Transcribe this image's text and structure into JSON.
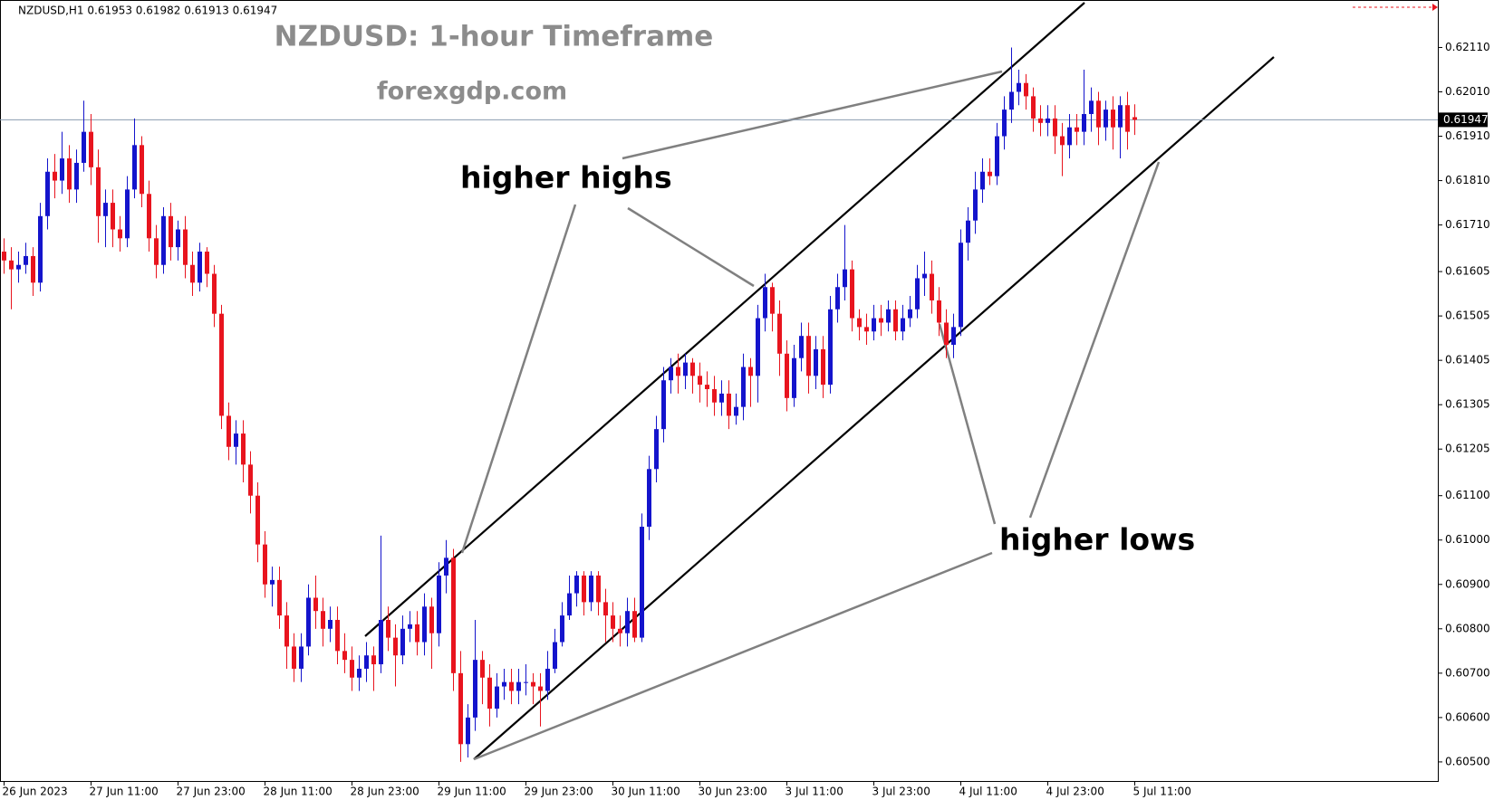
{
  "chart_data": {
    "type": "candlestick",
    "header": "NZDUSD,H1  0.61953 0.61982 0.61913 0.61947",
    "title": "NZDUSD: 1-hour Timeframe",
    "subtitle": "forexgdp.com",
    "annotations": [
      "higher highs",
      "higher lows"
    ],
    "up_color": "#1414cc",
    "down_color": "#e8141e",
    "categories": [
      "26 Jun 2023",
      null,
      null,
      null,
      null,
      null,
      null,
      null,
      null,
      null,
      null,
      null,
      "27 Jun 11:00",
      null,
      null,
      null,
      null,
      null,
      null,
      null,
      null,
      null,
      null,
      null,
      "27 Jun 23:00",
      null,
      null,
      null,
      null,
      null,
      null,
      null,
      null,
      null,
      null,
      null,
      "28 Jun 11:00",
      null,
      null,
      null,
      null,
      null,
      null,
      null,
      null,
      null,
      null,
      null,
      "28 Jun 23:00",
      null,
      null,
      null,
      null,
      null,
      null,
      null,
      null,
      null,
      null,
      null,
      "29 Jun 11:00",
      null,
      null,
      null,
      null,
      null,
      null,
      null,
      null,
      null,
      null,
      null,
      "29 Jun 23:00",
      null,
      null,
      null,
      null,
      null,
      null,
      null,
      null,
      null,
      null,
      null,
      "30 Jun 11:00",
      null,
      null,
      null,
      null,
      null,
      null,
      null,
      null,
      null,
      null,
      null,
      "30 Jun 23:00",
      null,
      null,
      null,
      null,
      null,
      null,
      null,
      null,
      null,
      null,
      null,
      "3 Jul 11:00",
      null,
      null,
      null,
      null,
      null,
      null,
      null,
      null,
      null,
      null,
      null,
      "3 Jul 23:00",
      null,
      null,
      null,
      null,
      null,
      null,
      null,
      null,
      null,
      null,
      null,
      "4 Jul 11:00",
      null,
      null,
      null,
      null,
      null,
      null,
      null,
      null,
      null,
      null,
      null,
      "4 Jul 23:00",
      null,
      null,
      null,
      null,
      null,
      null,
      null,
      null,
      null,
      null,
      null,
      "5 Jul 11:00"
    ],
    "open": [
      0.6165,
      0.6163,
      0.6161,
      0.6162,
      0.6164,
      0.6158,
      0.6173,
      0.6183,
      0.6181,
      0.6186,
      0.6179,
      0.6185,
      0.6192,
      0.6184,
      0.6173,
      0.6176,
      0.617,
      0.6168,
      0.6179,
      0.6189,
      0.6178,
      0.6168,
      0.6162,
      0.6173,
      0.6166,
      0.617,
      0.6162,
      0.6158,
      0.6165,
      0.616,
      0.6151,
      0.6128,
      0.6121,
      0.6124,
      0.6117,
      0.611,
      0.6099,
      0.609,
      0.6091,
      0.6083,
      0.6076,
      0.6071,
      0.6076,
      0.6087,
      0.6084,
      0.608,
      0.6082,
      0.6075,
      0.6073,
      0.6069,
      0.6071,
      0.6074,
      0.6072,
      0.6082,
      0.6078,
      0.6074,
      0.608,
      0.6081,
      0.6077,
      0.6085,
      0.6079,
      0.6092,
      0.6096,
      0.607,
      0.6054,
      0.606,
      0.6073,
      0.6069,
      0.6062,
      0.6067,
      0.6068,
      0.6066,
      0.6068,
      0.6068,
      0.6067,
      0.6066,
      0.6071,
      0.6077,
      0.6083,
      0.6088,
      0.6092,
      0.6086,
      0.6092,
      0.6086,
      0.6083,
      0.608,
      0.6079,
      0.6084,
      0.6078,
      0.6103,
      0.6116,
      0.6125,
      0.6136,
      0.6139,
      0.6137,
      0.614,
      0.6137,
      0.6135,
      0.6134,
      0.6131,
      0.6133,
      0.6128,
      0.613,
      0.6139,
      0.6137,
      0.615,
      0.6157,
      0.6151,
      0.6142,
      0.6132,
      0.6141,
      0.6146,
      0.6137,
      0.6143,
      0.6135,
      0.6152,
      0.6157,
      0.6161,
      0.615,
      0.6148,
      0.6147,
      0.615,
      0.6149,
      0.6152,
      0.6147,
      0.615,
      0.6152,
      0.6159,
      0.616,
      0.6154,
      0.6149,
      0.6144,
      0.6148,
      0.6167,
      0.6172,
      0.6179,
      0.6183,
      0.6182,
      0.6191,
      0.6197,
      0.6201,
      0.6203,
      0.62,
      0.6195,
      0.6194,
      0.6195,
      0.6191,
      0.6189,
      0.6193,
      0.6192,
      0.6196,
      0.6199,
      0.6193,
      0.6197,
      0.6193,
      0.6198,
      0.61953
    ],
    "high": [
      0.6168,
      0.6166,
      0.6165,
      0.6167,
      0.6166,
      0.6176,
      0.6186,
      0.6187,
      0.6192,
      0.6189,
      0.6188,
      0.6199,
      0.6196,
      0.6188,
      0.6179,
      0.6179,
      0.6173,
      0.6182,
      0.6195,
      0.6191,
      0.6181,
      0.6171,
      0.6175,
      0.6176,
      0.6172,
      0.6173,
      0.6165,
      0.6167,
      0.6166,
      0.6162,
      0.6153,
      0.6131,
      0.6127,
      0.6127,
      0.612,
      0.6113,
      0.6102,
      0.6094,
      0.6094,
      0.6086,
      0.6079,
      0.6079,
      0.609,
      0.6092,
      0.6087,
      0.6085,
      0.6085,
      0.6079,
      0.6076,
      0.6074,
      0.6077,
      0.6076,
      0.6101,
      0.6085,
      0.6081,
      0.6083,
      0.6084,
      0.6084,
      0.6088,
      0.6087,
      0.6095,
      0.61,
      0.6098,
      0.6075,
      0.6063,
      0.6082,
      0.6075,
      0.6072,
      0.607,
      0.6071,
      0.6071,
      0.6071,
      0.6072,
      0.607,
      0.607,
      0.6075,
      0.608,
      0.6086,
      0.6092,
      0.6093,
      0.6093,
      0.6093,
      0.6093,
      0.6089,
      0.6086,
      0.6083,
      0.6087,
      0.6087,
      0.6106,
      0.6119,
      0.6128,
      0.6139,
      0.6141,
      0.6142,
      0.6142,
      0.6141,
      0.614,
      0.6138,
      0.6137,
      0.6136,
      0.6136,
      0.6133,
      0.6142,
      0.6141,
      0.6153,
      0.616,
      0.6158,
      0.6154,
      0.6145,
      0.6144,
      0.6149,
      0.6149,
      0.6146,
      0.6146,
      0.6155,
      0.616,
      0.6171,
      0.6163,
      0.6152,
      0.6151,
      0.6153,
      0.6153,
      0.6154,
      0.6154,
      0.6153,
      0.6155,
      0.6162,
      0.6165,
      0.6163,
      0.6157,
      0.6152,
      0.6151,
      0.617,
      0.6175,
      0.6183,
      0.6186,
      0.6186,
      0.6194,
      0.62,
      0.6211,
      0.6206,
      0.6205,
      0.6202,
      0.6198,
      0.6198,
      0.6198,
      0.6194,
      0.6196,
      0.6196,
      0.6206,
      0.6202,
      0.6201,
      0.6199,
      0.62,
      0.62,
      0.6201,
      0.61982
    ],
    "low": [
      0.616,
      0.6152,
      0.6158,
      0.616,
      0.6155,
      0.6156,
      0.617,
      0.6177,
      0.6178,
      0.6176,
      0.6176,
      0.6183,
      0.618,
      0.6167,
      0.6166,
      0.6166,
      0.6165,
      0.6166,
      0.6177,
      0.6175,
      0.6165,
      0.6159,
      0.616,
      0.6163,
      0.6163,
      0.6159,
      0.6155,
      0.6156,
      0.6157,
      0.6148,
      0.6125,
      0.6118,
      0.6117,
      0.6113,
      0.6106,
      0.6095,
      0.6087,
      0.6085,
      0.608,
      0.6071,
      0.6068,
      0.6068,
      0.6074,
      0.608,
      0.6076,
      0.6077,
      0.6072,
      0.607,
      0.6066,
      0.6066,
      0.6068,
      0.6066,
      0.607,
      0.6075,
      0.6067,
      0.6072,
      0.6077,
      0.6074,
      0.6074,
      0.6071,
      0.6076,
      0.6088,
      0.6066,
      0.605,
      0.6051,
      0.6057,
      0.6063,
      0.6058,
      0.606,
      0.6064,
      0.6063,
      0.6063,
      0.6065,
      0.6063,
      0.6058,
      0.6064,
      0.607,
      0.6076,
      0.6082,
      0.6085,
      0.6083,
      0.6084,
      0.6083,
      0.6077,
      0.6077,
      0.6076,
      0.6076,
      0.6077,
      0.6077,
      0.61,
      0.6113,
      0.6122,
      0.6133,
      0.6133,
      0.6134,
      0.6133,
      0.6131,
      0.613,
      0.6128,
      0.6128,
      0.6125,
      0.6126,
      0.6127,
      0.613,
      0.6131,
      0.6147,
      0.6147,
      0.6137,
      0.6129,
      0.613,
      0.6138,
      0.6133,
      0.6134,
      0.6132,
      0.6133,
      0.6149,
      0.6154,
      0.6147,
      0.6145,
      0.6144,
      0.6145,
      0.6146,
      0.6147,
      0.6145,
      0.6145,
      0.6148,
      0.615,
      0.6155,
      0.6151,
      0.6146,
      0.6141,
      0.6141,
      0.6146,
      0.6163,
      0.6169,
      0.6176,
      0.618,
      0.618,
      0.6188,
      0.6194,
      0.6198,
      0.6197,
      0.6192,
      0.6191,
      0.6191,
      0.6187,
      0.6182,
      0.6186,
      0.6189,
      0.6189,
      0.6192,
      0.6189,
      0.619,
      0.6188,
      0.6186,
      0.6188,
      0.61913
    ],
    "close": [
      0.6163,
      0.6161,
      0.6162,
      0.6164,
      0.6158,
      0.6173,
      0.6183,
      0.6181,
      0.6186,
      0.6179,
      0.6185,
      0.6192,
      0.6184,
      0.6173,
      0.6176,
      0.617,
      0.6168,
      0.6179,
      0.6189,
      0.6178,
      0.6168,
      0.6162,
      0.6173,
      0.6166,
      0.617,
      0.6162,
      0.6158,
      0.6165,
      0.616,
      0.6151,
      0.6128,
      0.6121,
      0.6124,
      0.6117,
      0.611,
      0.6099,
      0.609,
      0.6091,
      0.6083,
      0.6076,
      0.6071,
      0.6076,
      0.6087,
      0.6084,
      0.608,
      0.6082,
      0.6075,
      0.6073,
      0.6069,
      0.6071,
      0.6074,
      0.6072,
      0.6082,
      0.6078,
      0.6074,
      0.608,
      0.6081,
      0.6077,
      0.6085,
      0.6079,
      0.6092,
      0.6096,
      0.607,
      0.6054,
      0.606,
      0.6073,
      0.6069,
      0.6062,
      0.6067,
      0.6068,
      0.6066,
      0.6068,
      0.6068,
      0.6067,
      0.6066,
      0.6071,
      0.6077,
      0.6083,
      0.6088,
      0.6092,
      0.6086,
      0.6092,
      0.6086,
      0.6083,
      0.608,
      0.6079,
      0.6084,
      0.6078,
      0.6103,
      0.6116,
      0.6125,
      0.6136,
      0.6139,
      0.6137,
      0.614,
      0.6137,
      0.6135,
      0.6134,
      0.6131,
      0.6133,
      0.6128,
      0.613,
      0.6139,
      0.6137,
      0.615,
      0.6157,
      0.6151,
      0.6142,
      0.6132,
      0.6141,
      0.6146,
      0.6137,
      0.6143,
      0.6135,
      0.6152,
      0.6157,
      0.6161,
      0.615,
      0.6148,
      0.6147,
      0.615,
      0.6149,
      0.6152,
      0.6147,
      0.615,
      0.6152,
      0.6159,
      0.616,
      0.6154,
      0.6149,
      0.6144,
      0.6148,
      0.6167,
      0.6172,
      0.6179,
      0.6183,
      0.6182,
      0.6191,
      0.6197,
      0.6201,
      0.6203,
      0.62,
      0.6195,
      0.6194,
      0.6195,
      0.6191,
      0.6189,
      0.6193,
      0.6192,
      0.6196,
      0.6199,
      0.6193,
      0.6197,
      0.6193,
      0.6198,
      0.6192,
      0.61947
    ],
    "price_line": {
      "value": 0.61947,
      "label": "0.61947"
    },
    "ylim": [
      0.60457,
      0.62217
    ],
    "yticks": [
      {
        "value": 0.605,
        "label": "0.60500"
      },
      {
        "value": 0.606,
        "label": "0.60600"
      },
      {
        "value": 0.607,
        "label": "0.60700"
      },
      {
        "value": 0.608,
        "label": "0.60800"
      },
      {
        "value": 0.609,
        "label": "0.60900"
      },
      {
        "value": 0.61,
        "label": "0.61000"
      },
      {
        "value": 0.611,
        "label": "0.61100"
      },
      {
        "value": 0.61205,
        "label": "0.61205"
      },
      {
        "value": 0.61305,
        "label": "0.61305"
      },
      {
        "value": 0.61405,
        "label": "0.61405"
      },
      {
        "value": 0.61505,
        "label": "0.61505"
      },
      {
        "value": 0.61605,
        "label": "0.61605"
      },
      {
        "value": 0.6171,
        "label": "0.61710"
      },
      {
        "value": 0.6181,
        "label": "0.61810"
      },
      {
        "value": 0.6191,
        "label": "0.61910"
      },
      {
        "value": 0.6201,
        "label": "0.62010"
      },
      {
        "value": 0.6211,
        "label": "0.62110"
      }
    ],
    "grid": false
  }
}
